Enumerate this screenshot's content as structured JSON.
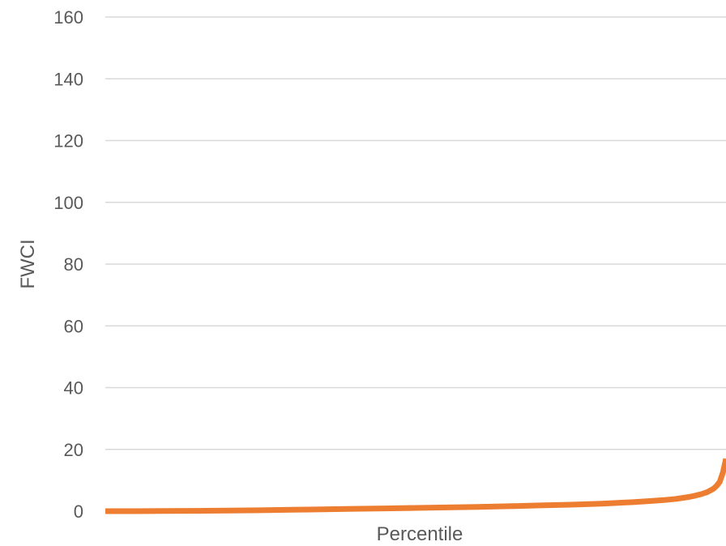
{
  "chart_data": {
    "type": "line",
    "title": "",
    "xlabel": "Percentile",
    "ylabel": "FWCI",
    "ylim": [
      0,
      160
    ],
    "yticks": [
      0,
      20,
      40,
      60,
      80,
      100,
      120,
      140,
      160
    ],
    "xlim": [
      0,
      100
    ],
    "grid": true,
    "legend": "none",
    "series": [
      {
        "color": "#ED7D31",
        "x": [
          0,
          5,
          10,
          15,
          20,
          25,
          30,
          35,
          40,
          45,
          50,
          55,
          60,
          65,
          70,
          75,
          80,
          85,
          88,
          90,
          92,
          94,
          95,
          96,
          97,
          98,
          98.5,
          99,
          99.5,
          100
        ],
        "y": [
          0,
          0,
          0.05,
          0.1,
          0.2,
          0.3,
          0.45,
          0.6,
          0.75,
          0.9,
          1.05,
          1.2,
          1.4,
          1.6,
          1.85,
          2.1,
          2.45,
          2.9,
          3.3,
          3.6,
          4.0,
          4.6,
          5.0,
          5.5,
          6.2,
          7.3,
          8.2,
          9.5,
          12.5,
          17
        ]
      }
    ]
  },
  "colors": {
    "line": "#ED7D31",
    "grid": "#D9D9D9",
    "text": "#595959"
  }
}
